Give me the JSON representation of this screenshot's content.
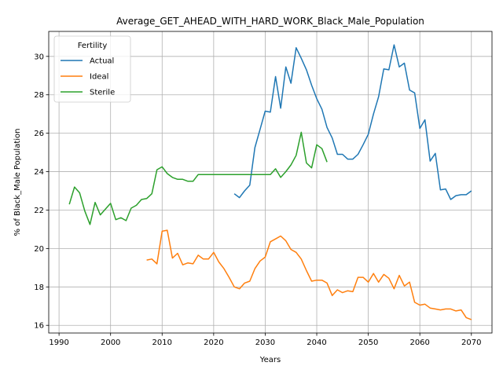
{
  "chart_data": {
    "type": "line",
    "title": "Average_GET_AHEAD_WITH_HARD_WORK_Black_Male_Population",
    "xlabel": "Years",
    "ylabel": "% of Black_Male Population",
    "xlim": [
      1988,
      2074
    ],
    "ylim": [
      15.6,
      31.3
    ],
    "xticks": [
      1990,
      2000,
      2010,
      2020,
      2030,
      2040,
      2050,
      2060,
      2070
    ],
    "yticks": [
      16,
      18,
      20,
      22,
      24,
      26,
      28,
      30
    ],
    "grid": true,
    "legend": {
      "title": "Fertility",
      "placement": "top-left"
    },
    "series": [
      {
        "name": "Actual",
        "color": "#1f77b4",
        "x": [
          2024,
          2025,
          2026,
          2027,
          2028,
          2029,
          2030,
          2031,
          2032,
          2033,
          2034,
          2035,
          2036,
          2037,
          2038,
          2039,
          2040,
          2041,
          2042,
          2043,
          2044,
          2045,
          2046,
          2047,
          2048,
          2049,
          2050,
          2051,
          2052,
          2053,
          2054,
          2055,
          2056,
          2057,
          2058,
          2059,
          2060,
          2061,
          2062,
          2063,
          2064,
          2065,
          2066,
          2067,
          2068,
          2069,
          2070
        ],
        "y": [
          22.85,
          22.65,
          23.0,
          23.3,
          25.25,
          26.2,
          27.15,
          27.1,
          28.95,
          27.3,
          29.45,
          28.6,
          30.45,
          29.9,
          29.3,
          28.5,
          27.8,
          27.25,
          26.3,
          25.75,
          24.9,
          24.9,
          24.65,
          24.65,
          24.9,
          25.4,
          25.95,
          27.0,
          27.9,
          29.35,
          29.3,
          30.6,
          29.45,
          29.65,
          28.25,
          28.1,
          26.25,
          26.7,
          24.55,
          24.95,
          23.05,
          23.1,
          22.55,
          22.75,
          22.8,
          22.8,
          23.0
        ]
      },
      {
        "name": "Ideal",
        "color": "#ff7f0e",
        "x": [
          2007,
          2008,
          2009,
          2010,
          2011,
          2012,
          2013,
          2014,
          2015,
          2016,
          2017,
          2018,
          2019,
          2020,
          2021,
          2022,
          2023,
          2024,
          2025,
          2026,
          2027,
          2028,
          2029,
          2030,
          2031,
          2032,
          2033,
          2034,
          2035,
          2036,
          2037,
          2038,
          2039,
          2040,
          2041,
          2042,
          2043,
          2044,
          2045,
          2046,
          2047,
          2048,
          2049,
          2050,
          2051,
          2052,
          2053,
          2054,
          2055,
          2056,
          2057,
          2058,
          2059,
          2060,
          2061,
          2062,
          2063,
          2064,
          2065,
          2066,
          2067,
          2068,
          2069,
          2070
        ],
        "y": [
          19.4,
          19.45,
          19.2,
          20.9,
          20.95,
          19.5,
          19.75,
          19.15,
          19.25,
          19.2,
          19.65,
          19.45,
          19.45,
          19.8,
          19.3,
          18.95,
          18.5,
          18.0,
          17.9,
          18.2,
          18.3,
          18.95,
          19.35,
          19.55,
          20.35,
          20.5,
          20.65,
          20.4,
          19.95,
          19.8,
          19.45,
          18.85,
          18.3,
          18.35,
          18.35,
          18.2,
          17.55,
          17.85,
          17.7,
          17.8,
          17.75,
          18.5,
          18.5,
          18.25,
          18.7,
          18.25,
          18.65,
          18.45,
          17.9,
          18.6,
          18.05,
          18.25,
          17.2,
          17.05,
          17.1,
          16.9,
          16.85,
          16.8,
          16.85,
          16.85,
          16.75,
          16.8,
          16.4,
          16.3
        ]
      },
      {
        "name": "Sterile",
        "color": "#2ca02c",
        "x": [
          1992,
          1993,
          1994,
          1995,
          1996,
          1997,
          1998,
          1999,
          2000,
          2001,
          2002,
          2003,
          2004,
          2005,
          2006,
          2007,
          2008,
          2009,
          2010,
          2011,
          2012,
          2013,
          2014,
          2015,
          2016,
          2017,
          2018,
          2019,
          2020,
          2021,
          2022,
          2023,
          2024,
          2025,
          2026,
          2027,
          2028,
          2029,
          2030,
          2031,
          2032,
          2033,
          2034,
          2035,
          2036,
          2037,
          2038,
          2039,
          2040,
          2041,
          2042
        ],
        "y": [
          22.3,
          23.2,
          22.9,
          21.95,
          21.25,
          22.4,
          21.75,
          22.05,
          22.35,
          21.5,
          21.6,
          21.45,
          22.1,
          22.25,
          22.55,
          22.6,
          22.85,
          24.1,
          24.25,
          23.9,
          23.7,
          23.6,
          23.6,
          23.5,
          23.5,
          23.85,
          23.85,
          23.85,
          23.85,
          23.85,
          23.85,
          23.85,
          23.85,
          23.85,
          23.85,
          23.85,
          23.85,
          23.85,
          23.85,
          23.85,
          24.15,
          23.7,
          24.0,
          24.35,
          24.85,
          26.05,
          24.45,
          24.2,
          25.4,
          25.2,
          24.5
        ]
      }
    ]
  }
}
